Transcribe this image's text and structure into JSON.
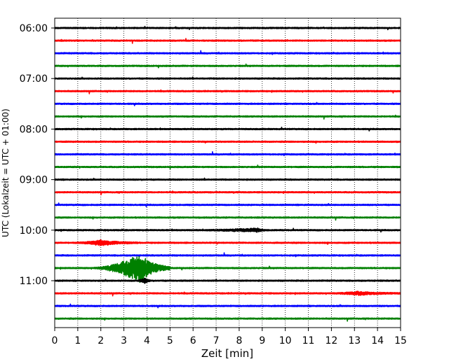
{
  "chart_data": {
    "type": "line",
    "title": "",
    "xlabel": "Zeit  [min]",
    "ylabel": "UTC (Lokalzeit = UTC + 01:00)",
    "xlim": [
      0,
      15
    ],
    "x_ticks": [
      "0",
      "1",
      "2",
      "3",
      "4",
      "5",
      "6",
      "7",
      "8",
      "9",
      "10",
      "11",
      "12",
      "13",
      "14",
      "15"
    ],
    "y_tick_labels": [
      "06:00",
      "07:00",
      "08:00",
      "09:00",
      "10:00",
      "11:00"
    ],
    "grid": "vertical dotted at each minute",
    "trace_count": 24,
    "trace_interval_min": 15,
    "trace_colors": [
      "#000000",
      "#ff0000",
      "#0000ff",
      "#008000"
    ],
    "events": [
      {
        "trace": 16,
        "start_min": 5.8,
        "peak_min": 8.8,
        "end_min": 9.2,
        "amplitude": 0.55
      },
      {
        "trace": 17,
        "start_min": 0.8,
        "peak_min": 2.0,
        "end_min": 3.6,
        "amplitude": 0.9
      },
      {
        "trace": 19,
        "start_min": 1.5,
        "peak_min": 3.7,
        "end_min": 5.0,
        "amplitude": 5.0
      },
      {
        "trace": 20,
        "start_min": 3.5,
        "peak_min": 3.9,
        "end_min": 4.2,
        "amplitude": 0.8
      },
      {
        "trace": 21,
        "start_min": 11.8,
        "peak_min": 13.2,
        "end_min": 15.0,
        "amplitude": 0.55
      }
    ]
  }
}
